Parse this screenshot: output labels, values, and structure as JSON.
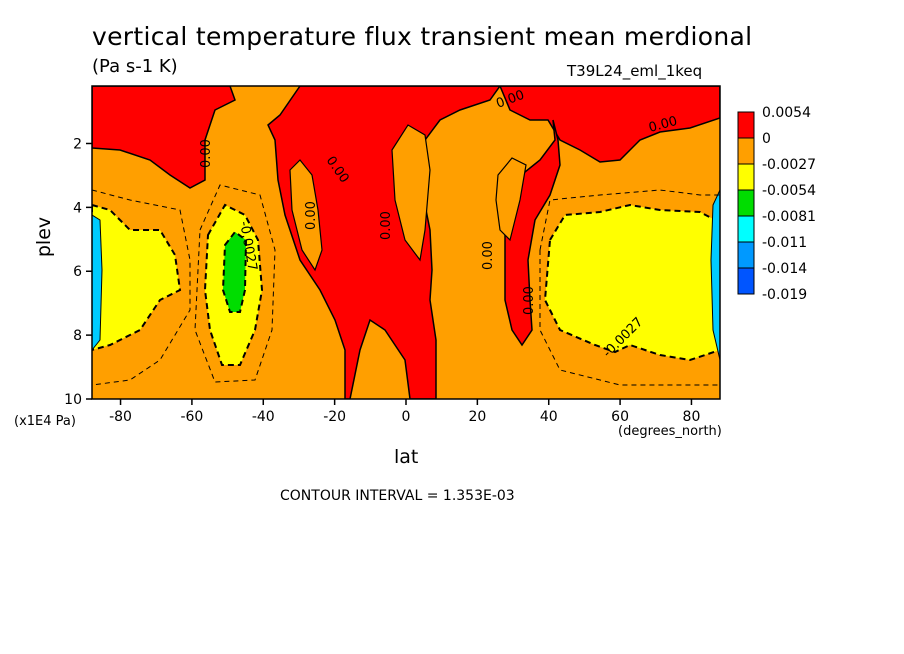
{
  "title": "vertical temperature flux transient mean merdional",
  "units": "(Pa s-1 K)",
  "run_label": "T39L24_eml_1keq",
  "y_scale_note": "(x1E4 Pa)",
  "x_units": "(degrees_north)",
  "contour_interval": "CONTOUR INTERVAL = 1.353E-03",
  "chart_data": {
    "type": "heatmap",
    "title": "vertical temperature flux transient mean merdional",
    "xlabel": "lat",
    "ylabel": "plev",
    "x_ticks": [
      "-80",
      "-60",
      "-40",
      "-20",
      "0",
      "20",
      "40",
      "60",
      "80"
    ],
    "y_ticks": [
      "2",
      "4",
      "6",
      "8",
      "10"
    ],
    "xlim": [
      -88,
      88
    ],
    "ylim": [
      10,
      0.2
    ],
    "legend": {
      "position": "right",
      "levels": [
        "0.0054",
        "0",
        "-0.0027",
        "-0.0054",
        "-0.0081",
        "-0.011",
        "-0.014",
        "-0.019"
      ],
      "colors": [
        "#ff0000",
        "#ff9f00",
        "#ffff00",
        "#00dd00",
        "#00ffff",
        "#0099ff",
        "#0055ff"
      ]
    },
    "contour_labels": [
      "0.00",
      "0.00",
      "0.00",
      "0.00",
      "0.00",
      "0.00",
      "0.00",
      "0.00",
      "0.00",
      "-0.0027",
      "-0.0027"
    ],
    "regions": [
      {
        "level": "positive",
        "color": "#ff0000",
        "description": "upper levels, equator and polar flanks"
      },
      {
        "level": "neg-weak",
        "color": "#ff9f00",
        "description": "background"
      },
      {
        "level": "neg-mid",
        "color": "#ffff00",
        "description": "midlatitude lobes near 50 and -80"
      },
      {
        "level": "neg-strong",
        "color": "#00dd00",
        "description": "core near -48 lat, 6 plev"
      }
    ]
  }
}
